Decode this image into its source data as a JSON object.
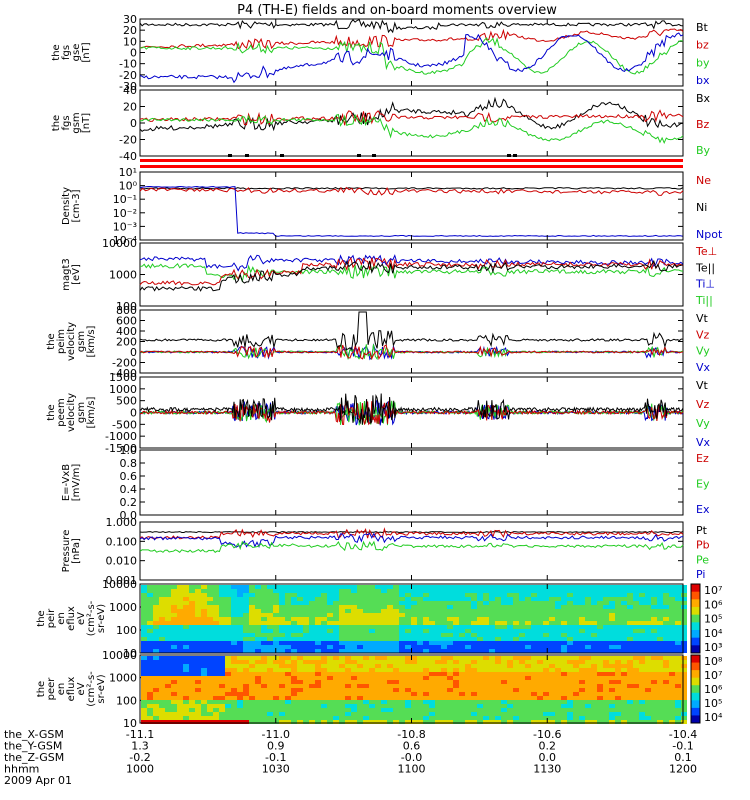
{
  "title": "P4 (TH-E) fields and on-board moments overview",
  "panels": [
    {
      "id": "fgs_gse",
      "ylabel": [
        "the",
        "fgs",
        "gse",
        "[nT]"
      ],
      "ticks": [
        "30",
        "20",
        "10",
        "0",
        "-10",
        "-20",
        "-30"
      ],
      "legend": [
        {
          "text": "Bt",
          "color": "#000000"
        },
        {
          "text": "bz",
          "color": "#cc0000"
        },
        {
          "text": "by",
          "color": "#22cc22"
        },
        {
          "text": "bx",
          "color": "#0000cc"
        }
      ]
    },
    {
      "id": "fgs_gsm",
      "ylabel": [
        "the",
        "fgs",
        "gsm",
        "[nT]"
      ],
      "ticks": [
        "40",
        "20",
        "0",
        "-20",
        "-40"
      ],
      "legend": [
        {
          "text": "Bx",
          "color": "#000000"
        },
        {
          "text": "Bz",
          "color": "#cc0000"
        },
        {
          "text": "By",
          "color": "#22cc22"
        }
      ]
    },
    {
      "id": "density",
      "ylabel": [
        "Density",
        "[cm-3]"
      ],
      "ticks": [
        "10¹",
        "10⁰",
        "10⁻¹",
        "10⁻²",
        "10⁻³",
        "10⁻⁴"
      ],
      "legend": [
        {
          "text": "Ne",
          "color": "#cc0000"
        },
        {
          "text": "Ni",
          "color": "#000000"
        },
        {
          "text": "Npot",
          "color": "#0000cc"
        }
      ]
    },
    {
      "id": "temp",
      "ylabel": [
        "magt3",
        "[eV]"
      ],
      "ticks": [
        "10000",
        "1000",
        "100"
      ],
      "legend": [
        {
          "text": "Te⊥",
          "color": "#cc0000"
        },
        {
          "text": "Te||",
          "color": "#000000"
        },
        {
          "text": "Ti⊥",
          "color": "#0000cc"
        },
        {
          "text": "Ti||",
          "color": "#22cc22"
        }
      ]
    },
    {
      "id": "peim_vel",
      "ylabel": [
        "the",
        "peim",
        "velocity",
        "gsm",
        "[km/s]"
      ],
      "ticks": [
        "800",
        "600",
        "400",
        "200",
        "0",
        "-200",
        "-400"
      ],
      "legend": [
        {
          "text": "Vt",
          "color": "#000000"
        },
        {
          "text": "Vz",
          "color": "#cc0000"
        },
        {
          "text": "Vy",
          "color": "#22cc22"
        },
        {
          "text": "Vx",
          "color": "#0000cc"
        }
      ]
    },
    {
      "id": "peem_vel",
      "ylabel": [
        "the",
        "peem",
        "velocity",
        "gsm",
        "[km/s]"
      ],
      "ticks": [
        "1500",
        "1000",
        "500",
        "0",
        "-500",
        "-1000",
        "-1500"
      ],
      "legend": [
        {
          "text": "Vt",
          "color": "#000000"
        },
        {
          "text": "Vz",
          "color": "#cc0000"
        },
        {
          "text": "Vy",
          "color": "#22cc22"
        },
        {
          "text": "Vx",
          "color": "#0000cc"
        }
      ]
    },
    {
      "id": "efield",
      "ylabel": [
        "E=-VxB",
        "[mV/m]"
      ],
      "ticks": [
        "1.0",
        "0.8",
        "0.6",
        "0.4",
        "0.2",
        "0.0"
      ],
      "legend": [
        {
          "text": "Ez",
          "color": "#cc0000"
        },
        {
          "text": "Ey",
          "color": "#22cc22"
        },
        {
          "text": "Ex",
          "color": "#0000cc"
        }
      ]
    },
    {
      "id": "pressure",
      "ylabel": [
        "Pressure",
        "[nPa]"
      ],
      "ticks": [
        "1.000",
        "0.100",
        "0.010",
        "0.001"
      ],
      "legend": [
        {
          "text": "Pt",
          "color": "#000000"
        },
        {
          "text": "Pb",
          "color": "#cc0000"
        },
        {
          "text": "Pe",
          "color": "#22cc22"
        },
        {
          "text": "Pi",
          "color": "#0000cc"
        }
      ]
    },
    {
      "id": "peir_spec",
      "ylabel": [
        "the",
        "peir",
        "en",
        "eflux",
        "eV",
        "(cm²-s-",
        "sr-eV)"
      ],
      "ticks": [
        "10000",
        "1000",
        "100",
        "10"
      ],
      "colorbar": [
        "10⁷",
        "10⁶",
        "10⁵",
        "10⁴",
        "10³"
      ]
    },
    {
      "id": "peer_spec",
      "ylabel": [
        "the",
        "peer",
        "en",
        "eflux",
        "eV",
        "(cm²-s-",
        "sr-eV)"
      ],
      "ticks": [
        "10000",
        "1000",
        "100",
        "10"
      ],
      "colorbar": [
        "10⁸",
        "10⁷",
        "10⁶",
        "10⁵",
        "10⁴"
      ]
    }
  ],
  "axis": {
    "row_labels": [
      "the_X-GSM",
      "the_Y-GSM",
      "the_Z-GSM",
      "hhmm",
      "2009 Apr 01"
    ],
    "columns": [
      [
        "-11.1",
        "1.3",
        "-0.2",
        "1000"
      ],
      [
        "-11.0",
        "0.9",
        "-0.1",
        "1030"
      ],
      [
        "-10.8",
        "0.6",
        "-0.0",
        "1100"
      ],
      [
        "-10.6",
        "0.2",
        "0.0",
        "1130"
      ],
      [
        "-10.4",
        "-0.1",
        "0.1",
        "1200"
      ]
    ]
  },
  "chart_data": {
    "type": "line",
    "title": "P4 (TH-E) fields and on-board moments overview",
    "x": [
      "1000",
      "1030",
      "1100",
      "1130",
      "1200"
    ],
    "xlabel": "hhmm",
    "date": "2009 Apr 01",
    "series": [
      {
        "name": "Bt",
        "panel": "fgs_gse",
        "x": [
          0,
          10,
          20,
          30,
          40,
          50,
          60,
          70,
          80,
          90,
          100,
          110,
          120
        ],
        "values": [
          27,
          26,
          25,
          24,
          26,
          23,
          20,
          22,
          24,
          27,
          28,
          27,
          26
        ]
      },
      {
        "name": "bz",
        "panel": "fgs_gse",
        "x": [
          0,
          10,
          20,
          30,
          40,
          50,
          60,
          70,
          80,
          90,
          100,
          110,
          120
        ],
        "values": [
          5,
          6,
          8,
          12,
          16,
          15,
          14,
          15,
          18,
          22,
          23,
          20,
          18
        ]
      },
      {
        "name": "by",
        "panel": "fgs_gse",
        "x": [
          0,
          10,
          20,
          30,
          40,
          50,
          60,
          70,
          80,
          90,
          100,
          110,
          120
        ],
        "values": [
          5,
          5,
          4,
          6,
          8,
          2,
          -8,
          -15,
          -5,
          10,
          -18,
          5,
          -20
        ]
      },
      {
        "name": "bx",
        "panel": "fgs_gse",
        "x": [
          0,
          10,
          20,
          30,
          40,
          50,
          60,
          70,
          80,
          90,
          100,
          110,
          120
        ],
        "values": [
          -22,
          -22,
          -20,
          -12,
          5,
          12,
          0,
          -15,
          5,
          20,
          -20,
          15,
          -10
        ]
      },
      {
        "name": "Ne",
        "panel": "density",
        "x": [
          0,
          20,
          40,
          60,
          80,
          100,
          120
        ],
        "values": [
          1.0,
          1.0,
          0.8,
          0.7,
          0.5,
          0.6,
          0.5
        ]
      },
      {
        "name": "Npot",
        "panel": "density",
        "x": [
          0,
          20,
          24,
          30,
          60,
          90,
          120
        ],
        "values": [
          1.0,
          1.0,
          0.001,
          0.0001,
          0.0001,
          0.0001,
          0.0001
        ]
      },
      {
        "name": "Ti⊥",
        "panel": "temp",
        "x": [
          0,
          20,
          40,
          60,
          80,
          100,
          120
        ],
        "values": [
          5000,
          4500,
          3500,
          3000,
          3000,
          3000,
          2800
        ]
      },
      {
        "name": "Ti||",
        "panel": "temp",
        "x": [
          0,
          20,
          40,
          60,
          80,
          100,
          120
        ],
        "values": [
          3000,
          1500,
          2500,
          2000,
          2000,
          2000,
          1800
        ]
      },
      {
        "name": "Pt",
        "panel": "pressure",
        "x": [
          0,
          20,
          40,
          60,
          80,
          100,
          120
        ],
        "values": [
          0.3,
          0.3,
          0.28,
          0.3,
          0.3,
          0.32,
          0.3
        ]
      },
      {
        "name": "Pe",
        "panel": "pressure",
        "x": [
          0,
          20,
          40,
          60,
          80,
          100,
          120
        ],
        "values": [
          0.05,
          0.03,
          0.05,
          0.05,
          0.06,
          0.06,
          0.06
        ]
      }
    ]
  }
}
